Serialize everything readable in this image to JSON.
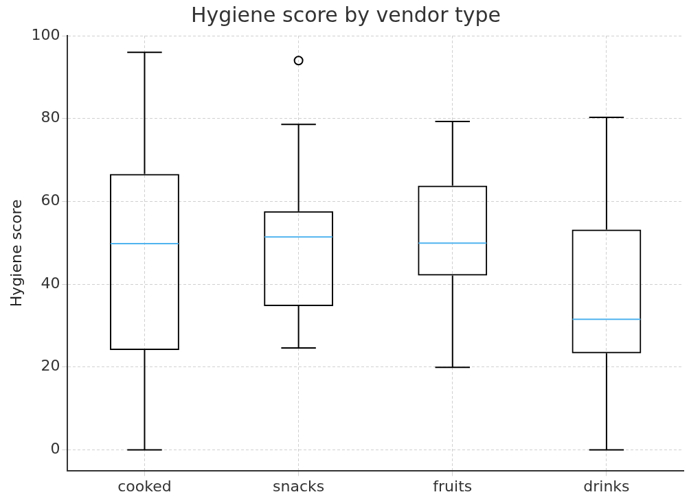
{
  "chart_data": {
    "type": "box",
    "title": "Hygiene score by vendor type",
    "ylabel": "Hygiene score",
    "categories": [
      "cooked",
      "snacks",
      "fruits",
      "drinks"
    ],
    "boxes": [
      {
        "low": 0,
        "q1": 24.1,
        "median": 49.8,
        "q3": 66.6,
        "high": 96
      },
      {
        "low": 24.6,
        "q1": 34.7,
        "median": 51.4,
        "q3": 57.6,
        "high": 78.6,
        "outliers": [
          94
        ]
      },
      {
        "low": 19.9,
        "q1": 42.1,
        "median": 49.9,
        "q3": 63.8,
        "high": 79.3
      },
      {
        "low": 0,
        "q1": 23.3,
        "median": 31.5,
        "q3": 53.2,
        "high": 80.3
      }
    ],
    "color": "#000000",
    "ylim": [
      -5,
      100
    ],
    "yticks": [
      0,
      20,
      40,
      60,
      80,
      100
    ],
    "grid": true
  }
}
